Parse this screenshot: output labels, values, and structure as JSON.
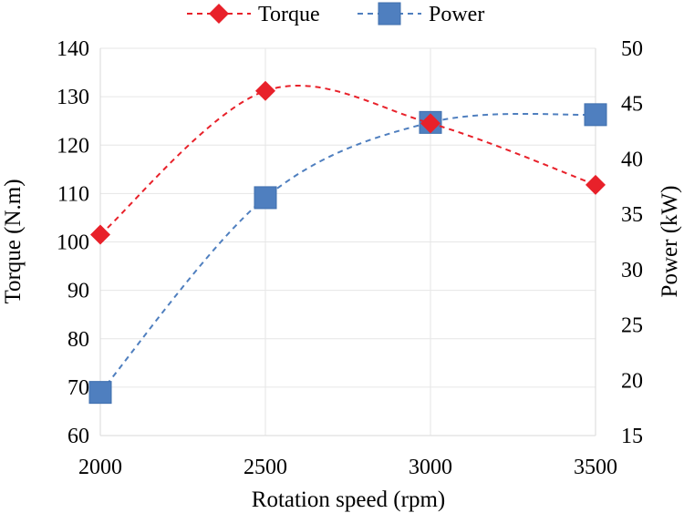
{
  "chart_data": {
    "type": "line",
    "xlabel": "Rotation speed (rpm)",
    "x": [
      2000,
      2500,
      3000,
      3500
    ],
    "xticks": [
      "2000",
      "2500",
      "3000",
      "3500"
    ],
    "legend_position": "top-center",
    "grid": true,
    "axes": {
      "left": {
        "label": "Torque (N.m)",
        "ylim": [
          60,
          140
        ],
        "step": 10,
        "ticks": [
          "60",
          "70",
          "80",
          "90",
          "100",
          "110",
          "120",
          "130",
          "140"
        ]
      },
      "right": {
        "label": "Power (kW)",
        "ylim": [
          15,
          50
        ],
        "step": 5,
        "ticks": [
          "15",
          "20",
          "25",
          "30",
          "35",
          "40",
          "45",
          "50"
        ]
      }
    },
    "series": [
      {
        "name": "Torque",
        "axis": "left",
        "values": [
          101.5,
          131.2,
          124.5,
          111.8
        ],
        "color": "#e8212a",
        "marker": "diamond",
        "line": "dashed-smooth"
      },
      {
        "name": "Power",
        "axis": "right",
        "values": [
          18.9,
          36.5,
          43.3,
          44.0
        ],
        "color": "#4f7fbf",
        "marker": "square",
        "line": "dashed-smooth"
      }
    ]
  }
}
